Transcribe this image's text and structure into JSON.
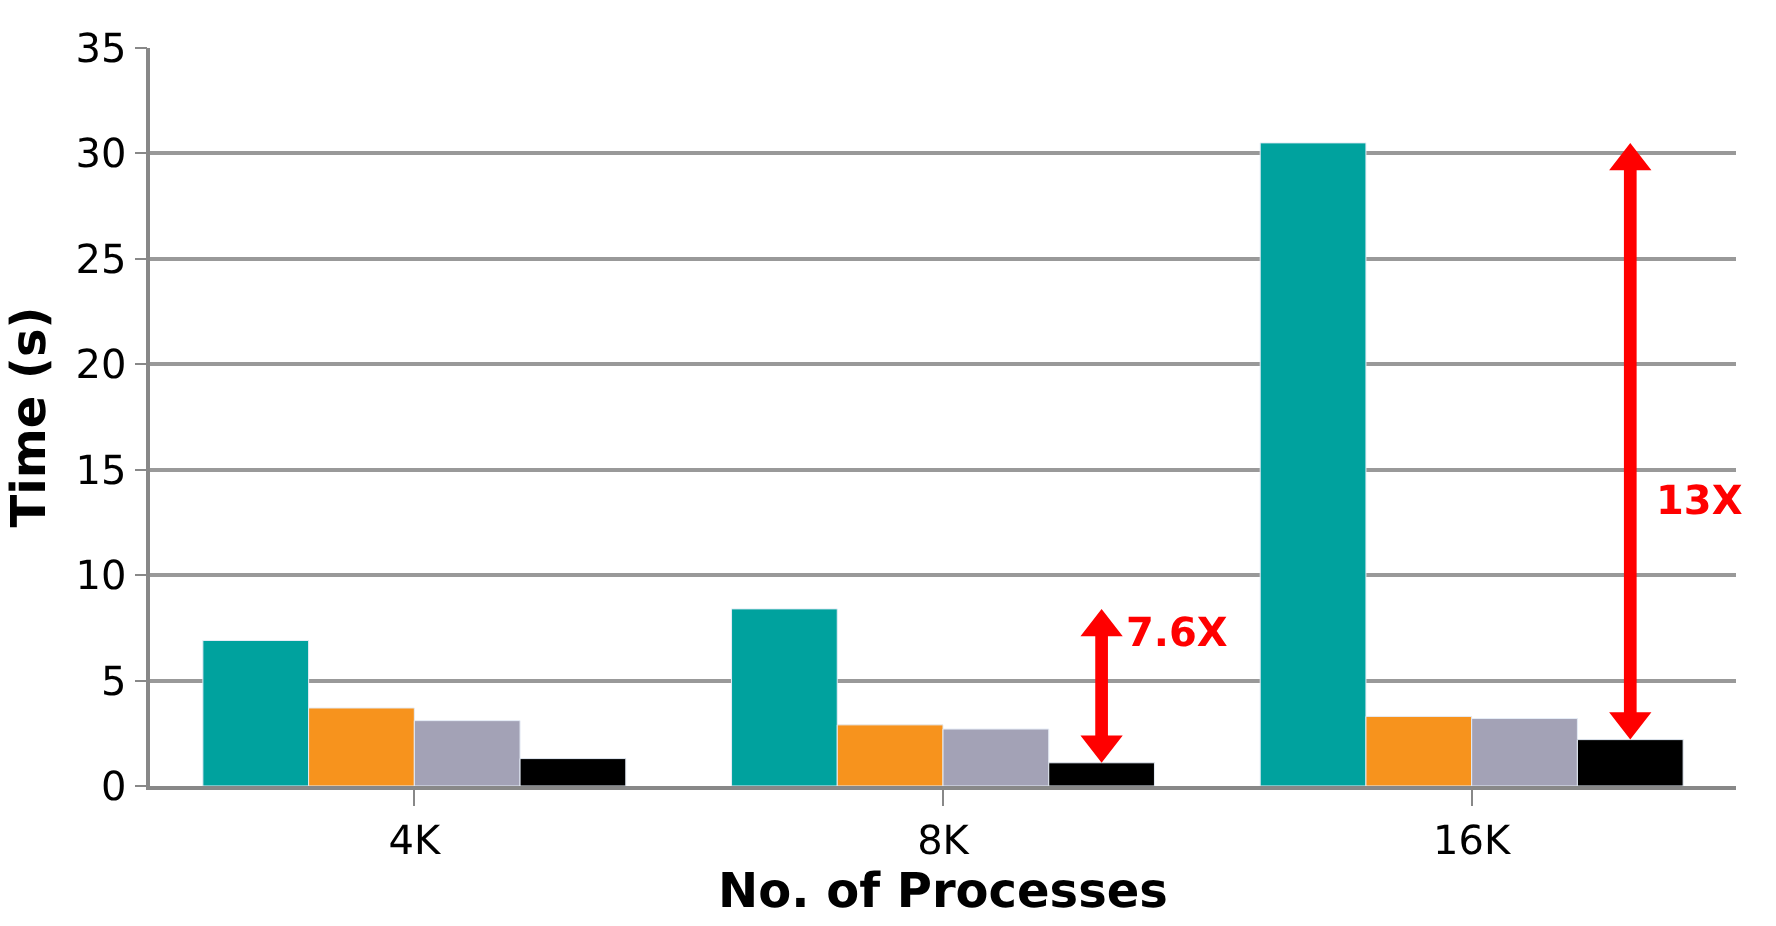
{
  "chart_data": {
    "type": "bar",
    "xlabel": "No. of Processes",
    "ylabel": "Time (s)",
    "categories": [
      "4K",
      "8K",
      "16K"
    ],
    "series": [
      {
        "color": "#00a29e",
        "values": [
          6.9,
          8.4,
          30.5
        ]
      },
      {
        "color": "#f7931d",
        "values": [
          3.7,
          2.9,
          3.3
        ]
      },
      {
        "color": "#a3a2b6",
        "values": [
          3.1,
          2.7,
          3.2
        ]
      },
      {
        "color": "#000000",
        "values": [
          1.3,
          1.1,
          2.2
        ]
      }
    ],
    "ylim": [
      0,
      35
    ],
    "yticks": [
      0,
      5,
      10,
      15,
      20,
      25,
      30,
      35
    ],
    "grid": "y",
    "annotations": [
      "7.6X",
      "13X"
    ]
  }
}
